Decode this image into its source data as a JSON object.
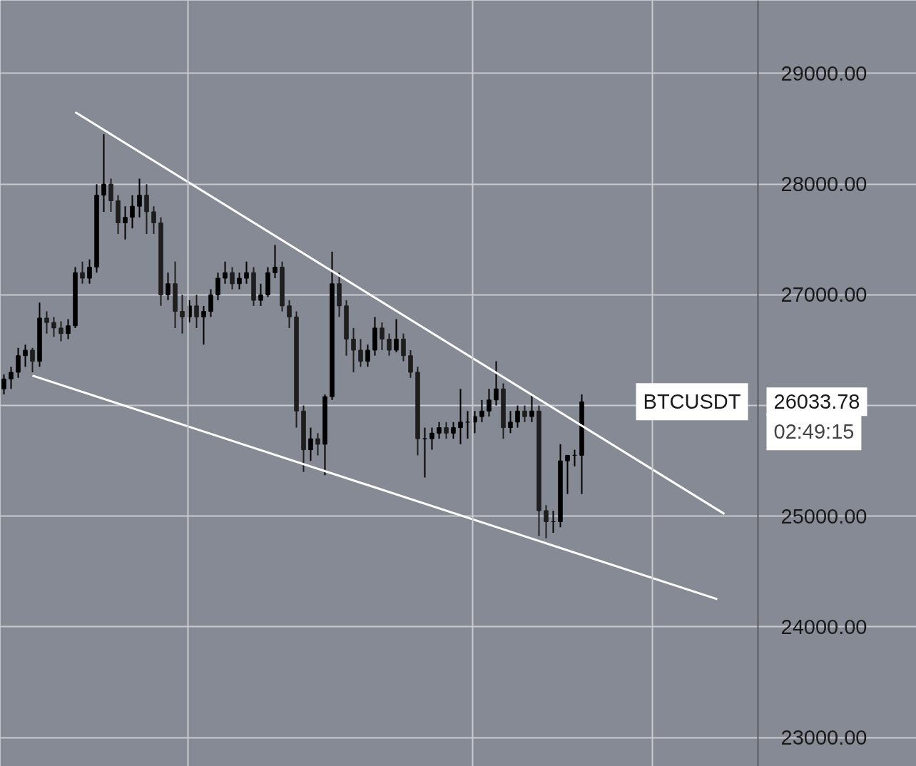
{
  "chart_data": {
    "type": "candlestick",
    "categories": [
      null,
      null,
      null,
      null,
      null,
      null,
      null,
      null,
      null,
      null,
      null,
      null,
      null,
      null,
      null,
      null,
      null,
      null,
      null,
      null,
      null,
      null,
      null,
      null,
      null,
      null,
      null,
      null,
      null,
      null,
      null,
      null,
      null,
      null,
      null,
      null,
      null,
      null,
      null,
      null,
      null,
      null,
      null,
      null,
      null,
      null,
      null,
      null,
      null,
      null,
      null,
      null,
      null,
      null,
      null,
      null,
      null,
      null,
      null,
      null,
      null,
      null,
      null,
      null,
      null,
      null,
      null,
      null,
      null,
      null,
      null,
      null,
      null,
      null,
      null,
      null,
      null,
      null,
      null,
      null,
      null,
      null,
      null,
      null,
      null,
      null,
      null,
      null,
      null,
      null,
      null,
      null,
      null,
      null,
      null,
      null,
      null,
      null,
      null,
      null,
      null,
      null,
      null,
      null,
      null,
      null
    ],
    "ohlc": [
      [
        26150,
        26280,
        26100,
        26240
      ],
      [
        26240,
        26350,
        26150,
        26300
      ],
      [
        26300,
        26520,
        26250,
        26450
      ],
      [
        26450,
        26550,
        26350,
        26500
      ],
      [
        26500,
        26520,
        26300,
        26400
      ],
      [
        26400,
        26930,
        26350,
        26790
      ],
      [
        26790,
        26850,
        26650,
        26750
      ],
      [
        26750,
        26800,
        26620,
        26700
      ],
      [
        26700,
        26760,
        26580,
        26650
      ],
      [
        26650,
        26780,
        26600,
        26720
      ],
      [
        26720,
        27250,
        26700,
        27200
      ],
      [
        27200,
        27300,
        27100,
        27150
      ],
      [
        27150,
        27320,
        27100,
        27250
      ],
      [
        27250,
        28000,
        27200,
        27900
      ],
      [
        27900,
        28450,
        27750,
        28000
      ],
      [
        28000,
        28050,
        27750,
        27850
      ],
      [
        27850,
        27900,
        27550,
        27650
      ],
      [
        27650,
        27800,
        27500,
        27700
      ],
      [
        27700,
        27900,
        27600,
        27800
      ],
      [
        27800,
        28050,
        27700,
        27900
      ],
      [
        27900,
        28000,
        27550,
        27750
      ],
      [
        27750,
        27800,
        27550,
        27650
      ],
      [
        27650,
        27700,
        26900,
        27000
      ],
      [
        27000,
        27200,
        26950,
        27100
      ],
      [
        27100,
        27300,
        26700,
        26850
      ],
      [
        26850,
        27000,
        26650,
        26800
      ],
      [
        26800,
        26950,
        26750,
        26900
      ],
      [
        26900,
        27000,
        26700,
        26800
      ],
      [
        26800,
        26900,
        26550,
        26850
      ],
      [
        26850,
        27050,
        26800,
        27000
      ],
      [
        27000,
        27200,
        26950,
        27150
      ],
      [
        27150,
        27300,
        27100,
        27200
      ],
      [
        27200,
        27250,
        27050,
        27100
      ],
      [
        27100,
        27200,
        27050,
        27150
      ],
      [
        27150,
        27300,
        27100,
        27200
      ],
      [
        27200,
        27250,
        26900,
        26950
      ],
      [
        26950,
        27100,
        26900,
        27000
      ],
      [
        27000,
        27250,
        26980,
        27200
      ],
      [
        27200,
        27450,
        27150,
        27250
      ],
      [
        27250,
        27300,
        26850,
        26900
      ],
      [
        26900,
        26950,
        26700,
        26800
      ],
      [
        26800,
        26850,
        25800,
        25950
      ],
      [
        25950,
        26000,
        25400,
        25600
      ],
      [
        25600,
        25800,
        25500,
        25700
      ],
      [
        25700,
        25750,
        25550,
        25650
      ],
      [
        25650,
        26100,
        25370,
        26080
      ],
      [
        26080,
        27390,
        26050,
        27100
      ],
      [
        27100,
        27200,
        26800,
        26900
      ],
      [
        26900,
        26950,
        26450,
        26600
      ],
      [
        26600,
        26700,
        26300,
        26500
      ],
      [
        26500,
        26600,
        26350,
        26400
      ],
      [
        26400,
        26550,
        26350,
        26500
      ],
      [
        26500,
        26800,
        26450,
        26700
      ],
      [
        26700,
        26750,
        26500,
        26600
      ],
      [
        26600,
        26650,
        26450,
        26500
      ],
      [
        26500,
        26780,
        26480,
        26600
      ],
      [
        26600,
        26650,
        26400,
        26450
      ],
      [
        26450,
        26500,
        26250,
        26300
      ],
      [
        26300,
        26350,
        25550,
        25700
      ],
      [
        25700,
        25800,
        25350,
        25700
      ],
      [
        25700,
        25800,
        25600,
        25750
      ],
      [
        25750,
        25850,
        25700,
        25800
      ],
      [
        25800,
        25850,
        25700,
        25750
      ],
      [
        25750,
        25850,
        25700,
        25800
      ],
      [
        25800,
        26150,
        25650,
        25850
      ],
      [
        25850,
        25950,
        25700,
        25850
      ],
      [
        25850,
        25950,
        25750,
        25900
      ],
      [
        25900,
        26050,
        25850,
        25950
      ],
      [
        25950,
        26150,
        25900,
        26050
      ],
      [
        26050,
        26400,
        26000,
        26150
      ],
      [
        26150,
        26200,
        25700,
        25800
      ],
      [
        25800,
        25950,
        25750,
        25850
      ],
      [
        25850,
        26000,
        25800,
        25950
      ],
      [
        25950,
        26000,
        25850,
        25900
      ],
      [
        25900,
        26100,
        25850,
        25950
      ],
      [
        25950,
        26000,
        24820,
        25050
      ],
      [
        25050,
        25100,
        24800,
        24950
      ],
      [
        24950,
        25050,
        24850,
        24950
      ],
      [
        24950,
        25650,
        24900,
        25500
      ],
      [
        25500,
        25550,
        25200,
        25550
      ],
      [
        25550,
        25600,
        25450,
        25550
      ],
      [
        25550,
        26100,
        25200,
        26033.78
      ],
      null,
      null,
      null,
      null,
      null,
      null,
      null,
      null,
      null,
      null,
      null,
      null,
      null,
      null,
      null,
      null,
      null,
      null,
      null,
      null,
      null,
      null,
      null,
      null
    ],
    "series": [
      {
        "type": "line",
        "color": "#ffffff",
        "values": [
          null,
          null,
          null,
          null,
          null,
          null,
          null,
          null,
          null,
          null,
          28650,
          null,
          null,
          null,
          null,
          null,
          null,
          null,
          null,
          null,
          null,
          null,
          null,
          null,
          null,
          null,
          null,
          null,
          null,
          null,
          null,
          null,
          null,
          null,
          null,
          null,
          null,
          null,
          null,
          null,
          null,
          null,
          null,
          null,
          null,
          null,
          null,
          null,
          null,
          null,
          null,
          null,
          null,
          null,
          null,
          null,
          null,
          null,
          null,
          null,
          null,
          null,
          null,
          null,
          null,
          null,
          null,
          null,
          null,
          null,
          null,
          null,
          null,
          null,
          null,
          null,
          null,
          null,
          null,
          null,
          null,
          null,
          null,
          null,
          null,
          null,
          null,
          null,
          null,
          null,
          null,
          null,
          null,
          null,
          null,
          null,
          null,
          null,
          null,
          null,
          null,
          25020,
          null,
          null,
          null,
          null
        ]
      },
      {
        "type": "line",
        "color": "#ffffff",
        "values": [
          null,
          null,
          null,
          null,
          26270,
          null,
          null,
          null,
          null,
          null,
          null,
          null,
          null,
          null,
          null,
          null,
          null,
          null,
          null,
          null,
          null,
          null,
          null,
          null,
          null,
          null,
          null,
          null,
          null,
          null,
          null,
          null,
          null,
          null,
          null,
          null,
          null,
          null,
          null,
          null,
          null,
          null,
          null,
          null,
          null,
          null,
          null,
          null,
          null,
          null,
          null,
          null,
          null,
          null,
          null,
          null,
          null,
          null,
          null,
          null,
          null,
          null,
          null,
          null,
          null,
          null,
          null,
          null,
          null,
          null,
          null,
          null,
          null,
          null,
          null,
          null,
          null,
          null,
          null,
          null,
          null,
          null,
          null,
          null,
          null,
          null,
          null,
          null,
          null,
          null,
          null,
          null,
          null,
          null,
          null,
          null,
          null,
          null,
          null,
          null,
          24250,
          null,
          null,
          null,
          null,
          null
        ]
      }
    ],
    "ylim": [
      22740,
      29660
    ],
    "yticks": [
      {
        "value": 23000,
        "label": "23000.00"
      },
      {
        "value": 24000,
        "label": "24000.00"
      },
      {
        "value": 25000,
        "label": "25000.00"
      },
      {
        "value": 26000,
        "label": null
      },
      {
        "value": 27000,
        "label": "27000.00"
      },
      {
        "value": 28000,
        "label": "28000.00"
      },
      {
        "value": 29000,
        "label": "29000.00"
      }
    ],
    "grid": true,
    "annotations": [
      "26033.78",
      "BTCUSDT",
      "02:49:15"
    ]
  }
}
